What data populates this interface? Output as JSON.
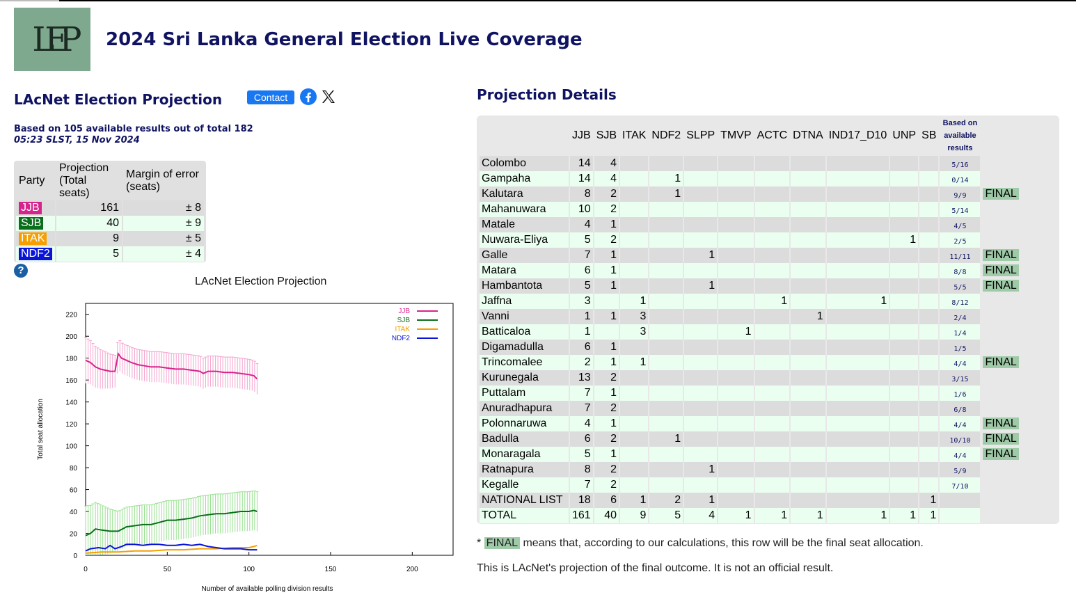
{
  "site": {
    "title": "2024 Sri Lanka General Election Live Coverage",
    "logo_text": "LEP"
  },
  "projection": {
    "title": "LAcNet Election Projection",
    "contact_label": "Contact",
    "based_on": "Based on 105 available results out of total 182",
    "timestamp": "05:23 SLST, 15 Nov 2024",
    "headers": {
      "party": "Party",
      "projection": "Projection (Total seats)",
      "margin": "Margin of error (seats)"
    },
    "rows": [
      {
        "party": "JJB",
        "projection": "161",
        "margin": "± 8",
        "color": "#d6248c"
      },
      {
        "party": "SJB",
        "projection": "40",
        "margin": "± 9",
        "color": "#0b6e1c"
      },
      {
        "party": "ITAK",
        "projection": "9",
        "margin": "± 5",
        "color": "#f5a000"
      },
      {
        "party": "NDF2",
        "projection": "5",
        "margin": "± 4",
        "color": "#0a14d8"
      }
    ]
  },
  "chart_data": {
    "type": "line",
    "title": "LAcNet Election Projection",
    "xlabel": "Number of available polling division results",
    "ylabel": "Total seat allocation",
    "xlim": [
      0,
      225
    ],
    "ylim": [
      0,
      230
    ],
    "xticks": [
      0,
      50,
      100,
      150,
      200
    ],
    "yticks": [
      0,
      20,
      40,
      60,
      80,
      100,
      120,
      140,
      160,
      180,
      200,
      220
    ],
    "legend_position": "top-right",
    "series": [
      {
        "name": "JJB",
        "color": "#d6248c",
        "err": 14,
        "points": [
          [
            0,
            178
          ],
          [
            3,
            176
          ],
          [
            6,
            172
          ],
          [
            9,
            170
          ],
          [
            12,
            169
          ],
          [
            15,
            168
          ],
          [
            18,
            168
          ],
          [
            20,
            184
          ],
          [
            22,
            180
          ],
          [
            25,
            178
          ],
          [
            28,
            176
          ],
          [
            32,
            174
          ],
          [
            36,
            173
          ],
          [
            40,
            172
          ],
          [
            45,
            172
          ],
          [
            50,
            171
          ],
          [
            55,
            170
          ],
          [
            60,
            170
          ],
          [
            65,
            169
          ],
          [
            70,
            168
          ],
          [
            72,
            166
          ],
          [
            75,
            168
          ],
          [
            80,
            168
          ],
          [
            85,
            167
          ],
          [
            90,
            167
          ],
          [
            95,
            166
          ],
          [
            100,
            165
          ],
          [
            103,
            164
          ],
          [
            105,
            161
          ]
        ]
      },
      {
        "name": "SJB",
        "color": "#0b6e1c",
        "err": 18,
        "points": [
          [
            0,
            18
          ],
          [
            3,
            20
          ],
          [
            6,
            24
          ],
          [
            10,
            23
          ],
          [
            15,
            22
          ],
          [
            20,
            22
          ],
          [
            25,
            26
          ],
          [
            30,
            27
          ],
          [
            35,
            28
          ],
          [
            40,
            28
          ],
          [
            45,
            30
          ],
          [
            50,
            32
          ],
          [
            55,
            32
          ],
          [
            60,
            33
          ],
          [
            65,
            34
          ],
          [
            70,
            36
          ],
          [
            75,
            37
          ],
          [
            80,
            38
          ],
          [
            85,
            38
          ],
          [
            90,
            39
          ],
          [
            95,
            40
          ],
          [
            100,
            40
          ],
          [
            103,
            41
          ],
          [
            105,
            40
          ]
        ]
      },
      {
        "name": "ITAK",
        "color": "#f5a000",
        "err": 0,
        "points": [
          [
            0,
            2
          ],
          [
            10,
            3
          ],
          [
            20,
            3
          ],
          [
            30,
            4
          ],
          [
            40,
            4
          ],
          [
            50,
            5
          ],
          [
            60,
            5
          ],
          [
            70,
            6
          ],
          [
            80,
            6
          ],
          [
            90,
            7
          ],
          [
            95,
            7
          ],
          [
            100,
            7
          ],
          [
            103,
            8
          ],
          [
            105,
            9
          ]
        ]
      },
      {
        "name": "NDF2",
        "color": "#0a14d8",
        "err": 0,
        "points": [
          [
            0,
            4
          ],
          [
            3,
            6
          ],
          [
            8,
            7
          ],
          [
            12,
            6
          ],
          [
            15,
            9
          ],
          [
            18,
            6
          ],
          [
            22,
            8
          ],
          [
            25,
            10
          ],
          [
            30,
            10
          ],
          [
            35,
            9
          ],
          [
            40,
            10
          ],
          [
            45,
            10
          ],
          [
            50,
            9
          ],
          [
            55,
            9
          ],
          [
            60,
            10
          ],
          [
            65,
            9
          ],
          [
            70,
            10
          ],
          [
            75,
            8
          ],
          [
            80,
            7
          ],
          [
            85,
            6
          ],
          [
            90,
            6
          ],
          [
            95,
            6
          ],
          [
            100,
            5
          ],
          [
            105,
            5
          ]
        ]
      }
    ]
  },
  "details": {
    "title": "Projection Details",
    "columns": [
      "JJB",
      "SJB",
      "ITAK",
      "NDF2",
      "SLPP",
      "TMVP",
      "ACTC",
      "DTNA",
      "IND17_D10",
      "UNP",
      "SB"
    ],
    "based_header": "Based on available results",
    "rows": [
      {
        "district": "Colombo",
        "seats": [
          "14",
          "4",
          "",
          "",
          "",
          "",
          "",
          "",
          "",
          "",
          ""
        ],
        "ratio": "5/16",
        "final": ""
      },
      {
        "district": "Gampaha",
        "seats": [
          "14",
          "4",
          "",
          "1",
          "",
          "",
          "",
          "",
          "",
          "",
          ""
        ],
        "ratio": "0/14",
        "final": ""
      },
      {
        "district": "Kalutara",
        "seats": [
          "8",
          "2",
          "",
          "1",
          "",
          "",
          "",
          "",
          "",
          "",
          ""
        ],
        "ratio": "9/9",
        "final": "FINAL"
      },
      {
        "district": "Mahanuwara",
        "seats": [
          "10",
          "2",
          "",
          "",
          "",
          "",
          "",
          "",
          "",
          "",
          ""
        ],
        "ratio": "5/14",
        "final": ""
      },
      {
        "district": "Matale",
        "seats": [
          "4",
          "1",
          "",
          "",
          "",
          "",
          "",
          "",
          "",
          "",
          ""
        ],
        "ratio": "4/5",
        "final": ""
      },
      {
        "district": "Nuwara-Eliya",
        "seats": [
          "5",
          "2",
          "",
          "",
          "",
          "",
          "",
          "",
          "",
          "1",
          ""
        ],
        "ratio": "2/5",
        "final": ""
      },
      {
        "district": "Galle",
        "seats": [
          "7",
          "1",
          "",
          "",
          "1",
          "",
          "",
          "",
          "",
          "",
          ""
        ],
        "ratio": "11/11",
        "final": "FINAL"
      },
      {
        "district": "Matara",
        "seats": [
          "6",
          "1",
          "",
          "",
          "",
          "",
          "",
          "",
          "",
          "",
          ""
        ],
        "ratio": "8/8",
        "final": "FINAL"
      },
      {
        "district": "Hambantota",
        "seats": [
          "5",
          "1",
          "",
          "",
          "1",
          "",
          "",
          "",
          "",
          "",
          ""
        ],
        "ratio": "5/5",
        "final": "FINAL"
      },
      {
        "district": "Jaffna",
        "seats": [
          "3",
          "",
          "1",
          "",
          "",
          "",
          "1",
          "",
          "1",
          "",
          ""
        ],
        "ratio": "8/12",
        "final": ""
      },
      {
        "district": "Vanni",
        "seats": [
          "1",
          "1",
          "3",
          "",
          "",
          "",
          "",
          "1",
          "",
          "",
          ""
        ],
        "ratio": "2/4",
        "final": ""
      },
      {
        "district": "Batticaloa",
        "seats": [
          "1",
          "",
          "3",
          "",
          "",
          "1",
          "",
          "",
          "",
          "",
          ""
        ],
        "ratio": "1/4",
        "final": ""
      },
      {
        "district": "Digamadulla",
        "seats": [
          "6",
          "1",
          "",
          "",
          "",
          "",
          "",
          "",
          "",
          "",
          ""
        ],
        "ratio": "1/5",
        "final": ""
      },
      {
        "district": "Trincomalee",
        "seats": [
          "2",
          "1",
          "1",
          "",
          "",
          "",
          "",
          "",
          "",
          "",
          ""
        ],
        "ratio": "4/4",
        "final": "FINAL"
      },
      {
        "district": "Kurunegala",
        "seats": [
          "13",
          "2",
          "",
          "",
          "",
          "",
          "",
          "",
          "",
          "",
          ""
        ],
        "ratio": "3/15",
        "final": ""
      },
      {
        "district": "Puttalam",
        "seats": [
          "7",
          "1",
          "",
          "",
          "",
          "",
          "",
          "",
          "",
          "",
          ""
        ],
        "ratio": "1/6",
        "final": ""
      },
      {
        "district": "Anuradhapura",
        "seats": [
          "7",
          "2",
          "",
          "",
          "",
          "",
          "",
          "",
          "",
          "",
          ""
        ],
        "ratio": "6/8",
        "final": ""
      },
      {
        "district": "Polonnaruwa",
        "seats": [
          "4",
          "1",
          "",
          "",
          "",
          "",
          "",
          "",
          "",
          "",
          ""
        ],
        "ratio": "4/4",
        "final": "FINAL"
      },
      {
        "district": "Badulla",
        "seats": [
          "6",
          "2",
          "",
          "1",
          "",
          "",
          "",
          "",
          "",
          "",
          ""
        ],
        "ratio": "10/10",
        "final": "FINAL"
      },
      {
        "district": "Monaragala",
        "seats": [
          "5",
          "1",
          "",
          "",
          "",
          "",
          "",
          "",
          "",
          "",
          ""
        ],
        "ratio": "4/4",
        "final": "FINAL"
      },
      {
        "district": "Ratnapura",
        "seats": [
          "8",
          "2",
          "",
          "",
          "1",
          "",
          "",
          "",
          "",
          "",
          ""
        ],
        "ratio": "5/9",
        "final": ""
      },
      {
        "district": "Kegalle",
        "seats": [
          "7",
          "2",
          "",
          "",
          "",
          "",
          "",
          "",
          "",
          "",
          ""
        ],
        "ratio": "7/10",
        "final": ""
      },
      {
        "district": "NATIONAL LIST",
        "seats": [
          "18",
          "6",
          "1",
          "2",
          "1",
          "",
          "",
          "",
          "",
          "",
          "1"
        ],
        "ratio": "",
        "final": ""
      },
      {
        "district": "TOTAL",
        "seats": [
          "161",
          "40",
          "9",
          "5",
          "4",
          "1",
          "1",
          "1",
          "1",
          "1",
          "1"
        ],
        "ratio": "",
        "final": ""
      }
    ]
  },
  "notes": {
    "prefix": "* ",
    "final_tag": "FINAL",
    "final_note": " means that, according to our calculations, this row will be the final seat allocation.",
    "disclaimer": "This is LAcNet's projection of the final outcome. It is not an official result."
  }
}
